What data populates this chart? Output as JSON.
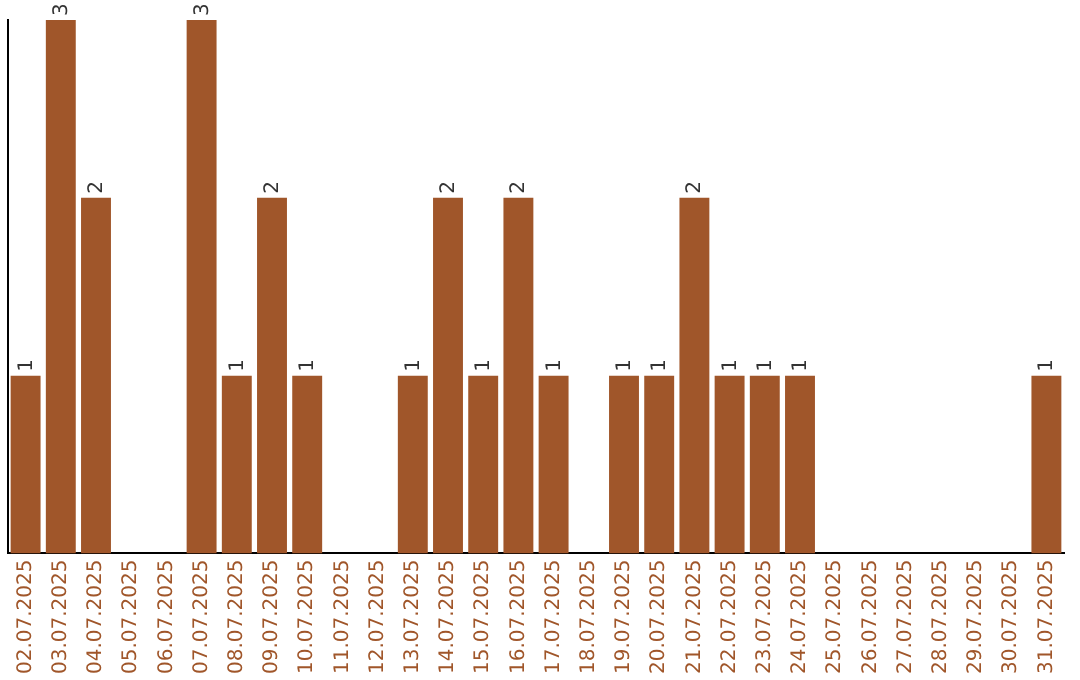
{
  "chart_data": {
    "type": "bar",
    "categories": [
      "02.07.2025",
      "03.07.2025",
      "04.07.2025",
      "05.07.2025",
      "06.07.2025",
      "07.07.2025",
      "08.07.2025",
      "09.07.2025",
      "10.07.2025",
      "11.07.2025",
      "12.07.2025",
      "13.07.2025",
      "14.07.2025",
      "15.07.2025",
      "16.07.2025",
      "17.07.2025",
      "18.07.2025",
      "19.07.2025",
      "20.07.2025",
      "21.07.2025",
      "22.07.2025",
      "23.07.2025",
      "24.07.2025",
      "25.07.2025",
      "26.07.2025",
      "27.07.2025",
      "28.07.2025",
      "29.07.2025",
      "30.07.2025",
      "31.07.2025"
    ],
    "values": [
      1,
      3,
      2,
      0,
      0,
      3,
      1,
      2,
      1,
      0,
      0,
      1,
      2,
      1,
      2,
      1,
      0,
      1,
      1,
      2,
      1,
      1,
      1,
      0,
      0,
      0,
      0,
      0,
      0,
      1
    ],
    "value_labels": [
      "1",
      "3",
      "2",
      null,
      null,
      "3",
      "1",
      "2",
      "1",
      null,
      null,
      "1",
      "2",
      "1",
      "2",
      "1",
      null,
      "1",
      "1",
      "2",
      "1",
      "1",
      "1",
      null,
      null,
      null,
      null,
      null,
      null,
      "1"
    ],
    "color": "#a0562a",
    "grid": false,
    "legend": false,
    "tick_labels": "x"
  }
}
